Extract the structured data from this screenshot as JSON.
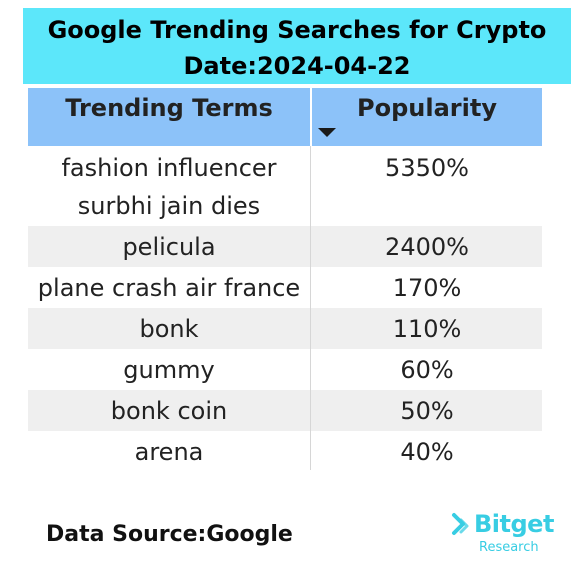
{
  "title": {
    "line1": "Google Trending Searches for Crypto",
    "line2": "Date:2024-04-22"
  },
  "table": {
    "columns": [
      "Trending Terms",
      "Popularity"
    ],
    "sort_indicator": "sort-descending-icon",
    "rows": [
      {
        "term": [
          "fashion influencer",
          "surbhi jain dies"
        ],
        "popularity": "5350%"
      },
      {
        "term": [
          "pelicula"
        ],
        "popularity": "2400%"
      },
      {
        "term": [
          "plane crash air france"
        ],
        "popularity": "170%"
      },
      {
        "term": [
          "bonk"
        ],
        "popularity": "110%"
      },
      {
        "term": [
          "gummy"
        ],
        "popularity": "60%"
      },
      {
        "term": [
          "bonk coin"
        ],
        "popularity": "50%"
      },
      {
        "term": [
          "arena"
        ],
        "popularity": "40%"
      }
    ]
  },
  "footer": {
    "source": "Data Source:Google",
    "brand_name": "Bitget",
    "brand_sub": "Research"
  },
  "colors": {
    "title_bg": "#5ce7fa",
    "header_bg": "#8cc2f9",
    "alt_row_bg": "#efefef",
    "brand": "#38cde3"
  }
}
